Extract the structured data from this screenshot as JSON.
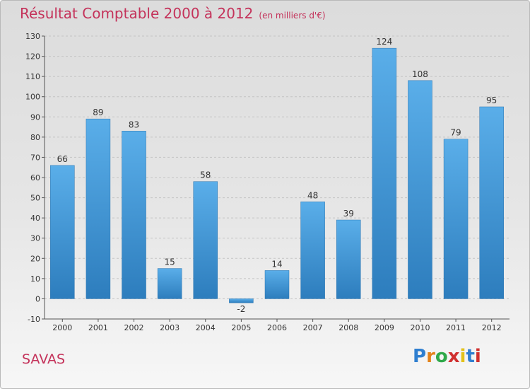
{
  "header": {
    "title": "Résultat Comptable 2000 à 2012",
    "subtitle": "(en milliers d'€)"
  },
  "footer": {
    "commune": "SAVAS",
    "logo_letters": [
      "P",
      "r",
      "o",
      "x",
      "i",
      "t",
      "i"
    ],
    "logo_colors": [
      "#2f7fd0",
      "#e3821a",
      "#2fa94a",
      "#d0302f",
      "#e3c21a",
      "#2f7fd0",
      "#d0302f"
    ]
  },
  "chart_data": {
    "type": "bar",
    "title": "Résultat Comptable 2000 à 2012",
    "subtitle": "(en milliers d'€)",
    "categories": [
      "2000",
      "2001",
      "2002",
      "2003",
      "2004",
      "2005",
      "2006",
      "2007",
      "2008",
      "2009",
      "2010",
      "2011",
      "2012"
    ],
    "values": [
      66,
      89,
      83,
      15,
      58,
      -2,
      14,
      48,
      39,
      124,
      108,
      79,
      95
    ],
    "ylim": [
      -10,
      130
    ],
    "yticks": [
      -10,
      0,
      10,
      20,
      30,
      40,
      50,
      60,
      70,
      80,
      90,
      100,
      110,
      120,
      130
    ],
    "xlabel": "",
    "ylabel": "",
    "grid": true,
    "bar_color_top": "#5aaee9",
    "bar_color_bottom": "#2d7dbd"
  }
}
